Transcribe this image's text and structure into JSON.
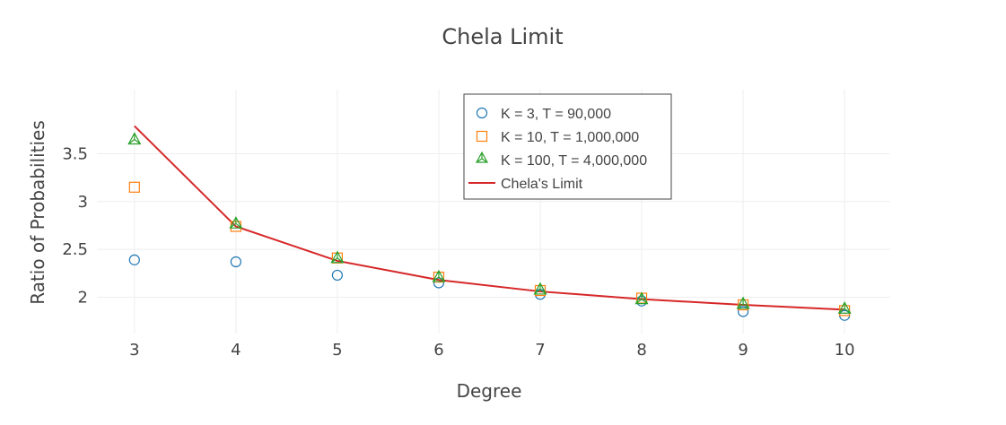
{
  "chart_data": {
    "type": "scatter",
    "title": "Chela Limit",
    "xlabel": "Degree",
    "ylabel": "Ratio of Probabilities",
    "x": [
      3,
      4,
      5,
      6,
      7,
      8,
      9,
      10
    ],
    "xlim": [
      2.63,
      10.45
    ],
    "ylim": [
      1.62,
      4.17
    ],
    "xticks": [
      "3",
      "4",
      "5",
      "6",
      "7",
      "8",
      "9",
      "10"
    ],
    "yticks": [
      "2",
      "2.5",
      "3",
      "3.5"
    ],
    "grid": true,
    "legend_position": "top-center",
    "series": [
      {
        "name": "K = 3, T = 90,000",
        "mode": "markers",
        "marker": "circle",
        "color": "#1f77b4",
        "values": [
          2.39,
          2.37,
          2.23,
          2.15,
          2.03,
          1.96,
          1.85,
          1.81
        ]
      },
      {
        "name": "K = 10, T = 1,000,000",
        "mode": "markers",
        "marker": "square",
        "color": "#ff7f0e",
        "values": [
          3.15,
          2.74,
          2.41,
          2.21,
          2.07,
          1.99,
          1.92,
          1.86
        ]
      },
      {
        "name": "K = 100, T = 4,000,000",
        "mode": "markers",
        "marker": "triangle",
        "color": "#2ca02c",
        "values": [
          3.65,
          2.77,
          2.41,
          2.21,
          2.08,
          1.98,
          1.93,
          1.88
        ]
      },
      {
        "name": "Chela's Limit",
        "mode": "lines",
        "color": "#d62728",
        "values": [
          3.79,
          2.74,
          2.38,
          2.18,
          2.06,
          1.98,
          1.92,
          1.87
        ]
      }
    ]
  }
}
